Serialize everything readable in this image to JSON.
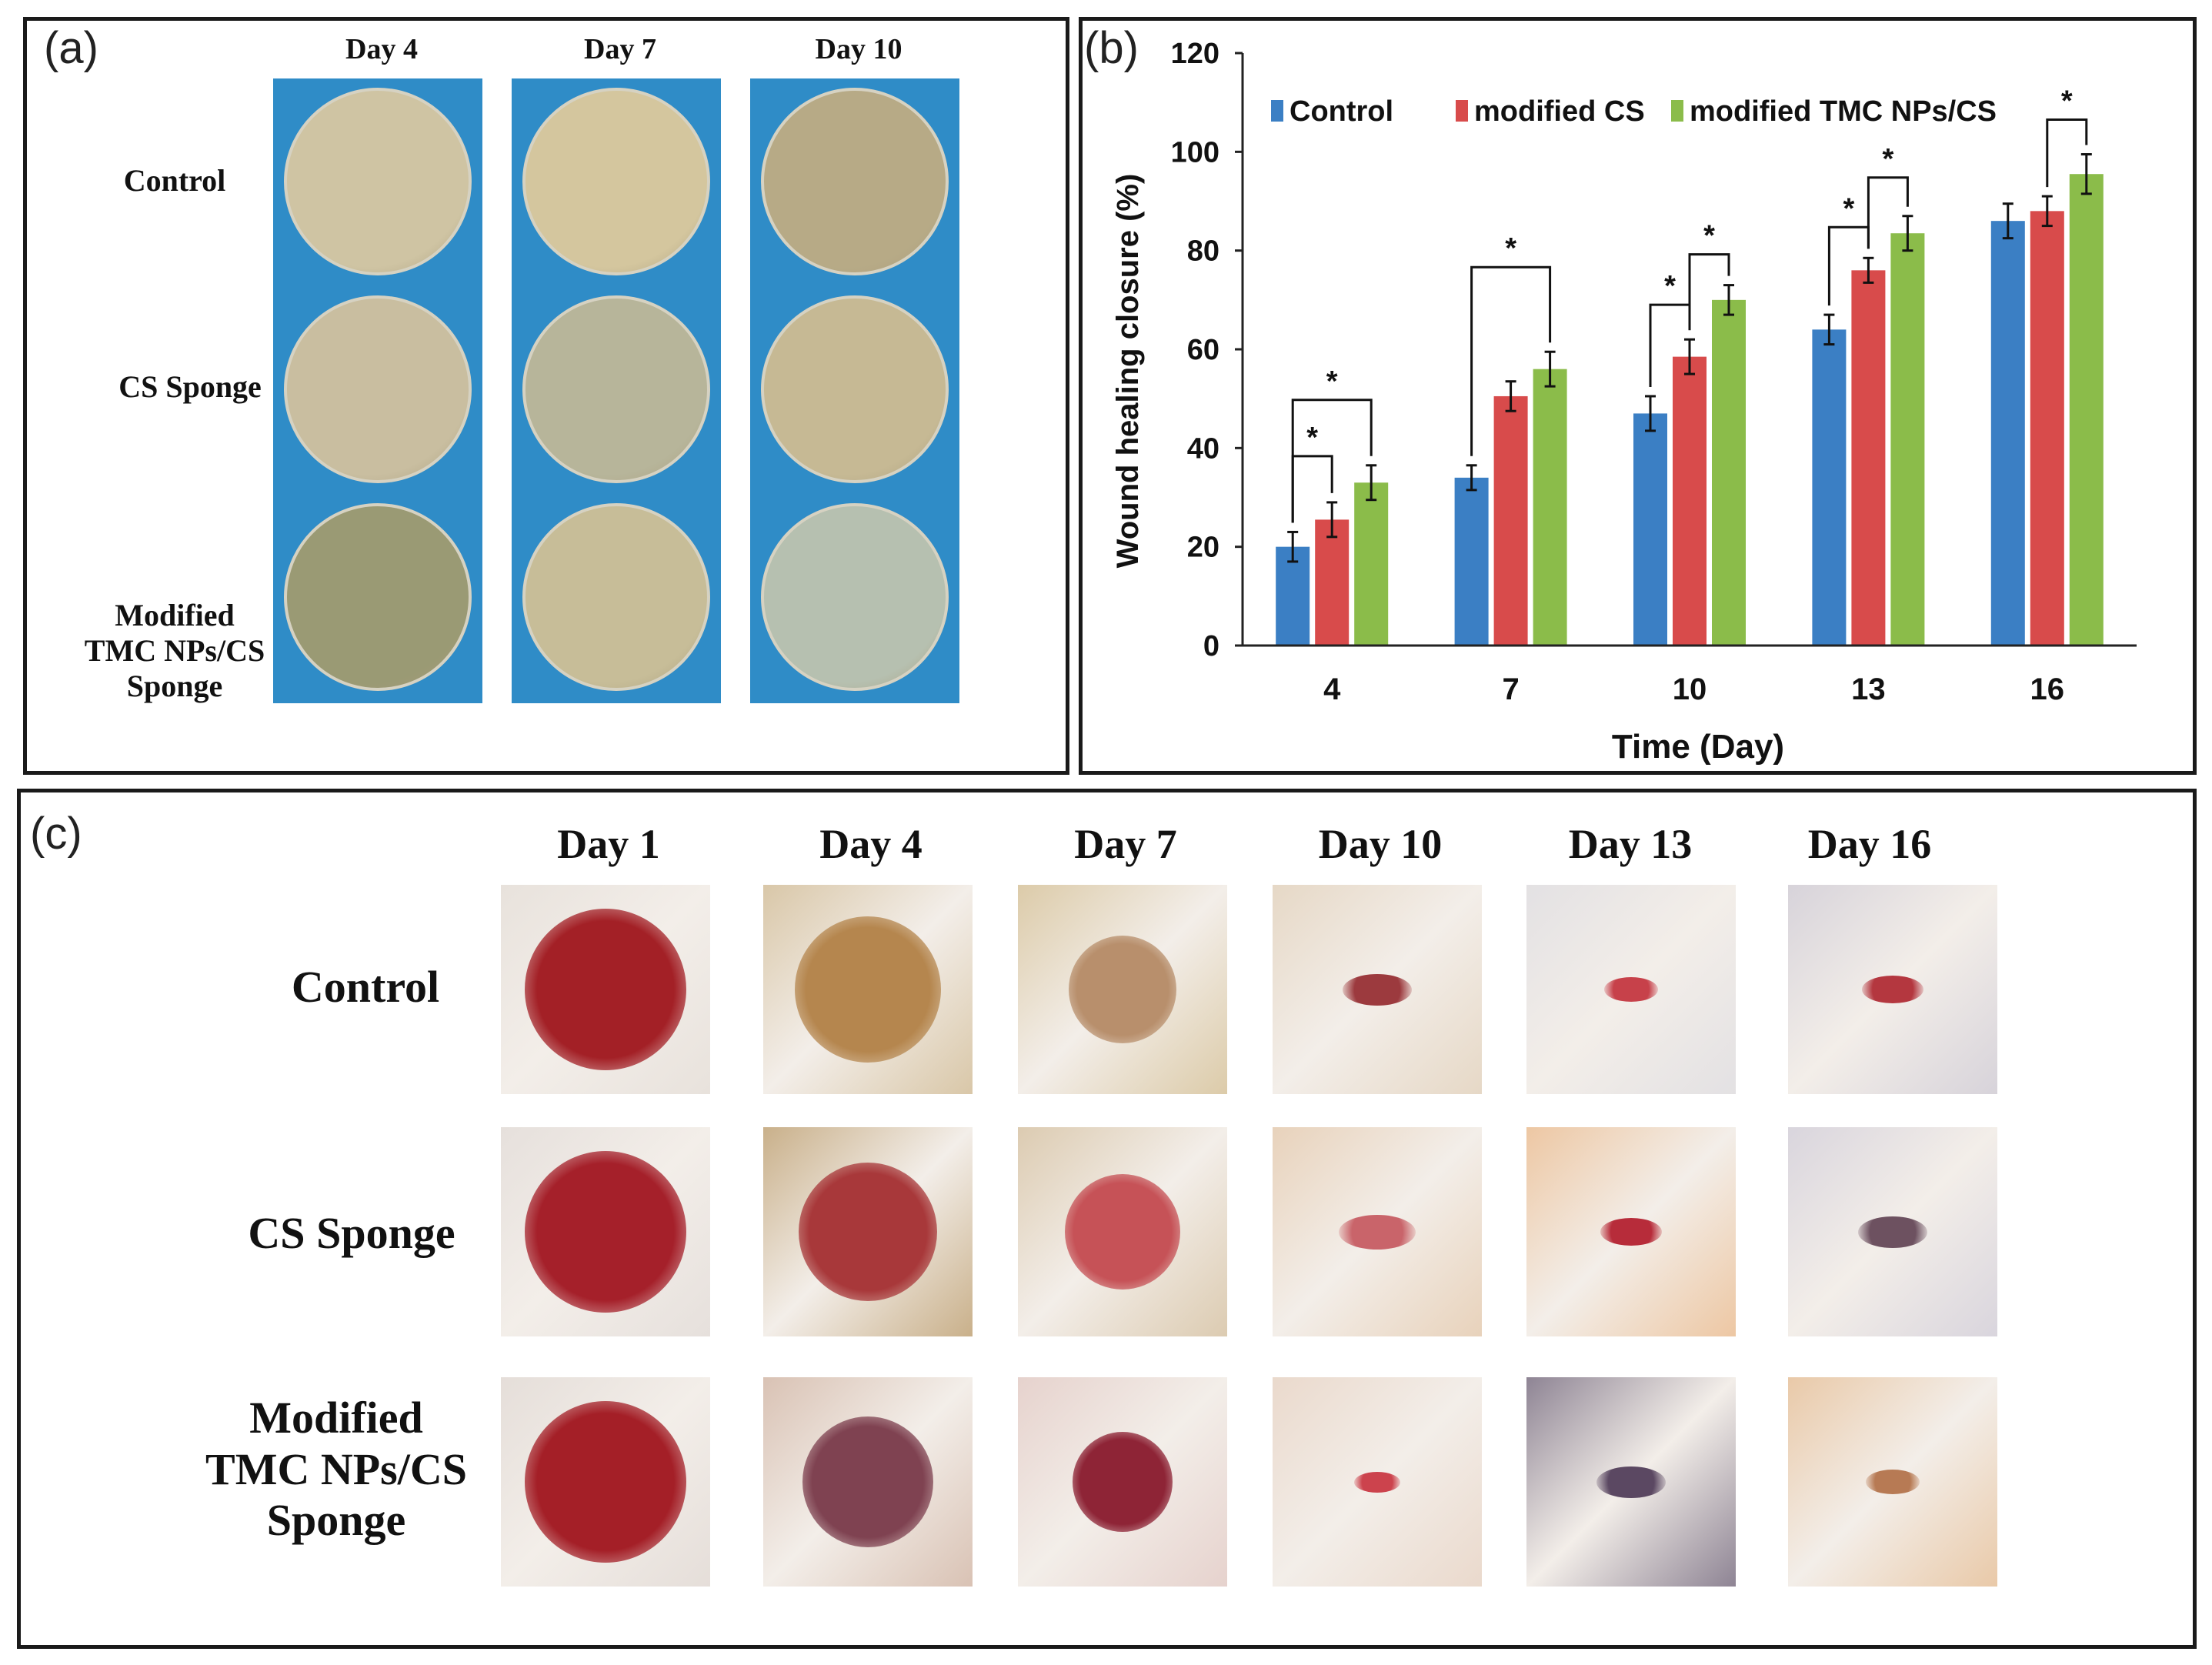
{
  "panel_a": {
    "label": "(a)",
    "columns": [
      "Day 4",
      "Day 7",
      "Day 10"
    ],
    "rows": [
      {
        "lines": [
          "Control"
        ]
      },
      {
        "lines": [
          "CS Sponge"
        ]
      },
      {
        "lines": [
          "Modified",
          "TMC NPs/CS",
          "Sponge"
        ]
      }
    ],
    "dish_colors": {
      "background": "#2f8cc7",
      "plates": [
        [
          "#cfc4a3",
          "#d4c69e",
          "#b7aa86"
        ],
        [
          "#c9bea0",
          "#b7b59a",
          "#c6b994"
        ],
        [
          "#9a9a74",
          "#c7bd98",
          "#b6c0b0"
        ]
      ]
    }
  },
  "panel_b": {
    "label": "(b)",
    "chart_data": {
      "type": "bar",
      "title": "",
      "xlabel": "Time (Day)",
      "ylabel": "Wound healing closure (%)",
      "categories": [
        "4",
        "7",
        "10",
        "13",
        "16"
      ],
      "ylim": [
        0,
        120
      ],
      "yticks": [
        0,
        20,
        40,
        60,
        80,
        100,
        120
      ],
      "legend_position": "top",
      "series": [
        {
          "name": "Control",
          "color": "#3b7fc4",
          "values": [
            20,
            34,
            47,
            64,
            86
          ],
          "errors": [
            3,
            2.5,
            3.5,
            3,
            3.5
          ]
        },
        {
          "name": "modified CS",
          "color": "#d84b4b",
          "values": [
            25.5,
            50.5,
            58.5,
            76,
            88
          ],
          "errors": [
            3.5,
            3,
            3.5,
            2.5,
            3
          ]
        },
        {
          "name": "modified TMC NPs/CS",
          "color": "#8bbc4a",
          "values": [
            33,
            56,
            70,
            83.5,
            95.5
          ],
          "errors": [
            3.5,
            3.5,
            3,
            3.5,
            4
          ]
        }
      ],
      "annotations": [
        {
          "day": "4",
          "marks": [
            "*",
            "*"
          ]
        },
        {
          "day": "7",
          "marks": [
            "*"
          ]
        },
        {
          "day": "10",
          "marks": [
            "*",
            "*"
          ]
        },
        {
          "day": "13",
          "marks": [
            "*",
            "*"
          ]
        },
        {
          "day": "16",
          "marks": [
            "*"
          ]
        }
      ]
    }
  },
  "panel_c": {
    "label": "(c)",
    "columns": [
      "Day 1",
      "Day 4",
      "Day 7",
      "Day 10",
      "Day 13",
      "Day 16"
    ],
    "rows": [
      {
        "lines": [
          "Control"
        ]
      },
      {
        "lines": [
          "CS Sponge"
        ]
      },
      {
        "lines": [
          "Modified",
          "TMC NPs/CS",
          "Sponge"
        ]
      }
    ],
    "wound_colors": {
      "fur": [
        [
          "#e8e2dc",
          "#d9c7a8",
          "#dccba9",
          "#e6d8c6",
          "#e3e1e3",
          "#d7d3da"
        ],
        [
          "#e6e0dc",
          "#c9b08a",
          "#dccbb1",
          "#e8d2bb",
          "#edc7a3",
          "#d9d5dd"
        ],
        [
          "#e5ded9",
          "#d9c2b4",
          "#e6d2cd",
          "#ead9cc",
          "#8e8494",
          "#e9c9a8"
        ]
      ],
      "lesion": [
        [
          "#a32026",
          "#b5864e",
          "#b88f6c",
          "#9c3a3e",
          "#c7414a",
          "#b4373f"
        ],
        [
          "#a5202a",
          "#a8383a",
          "#c65257",
          "#c9646a",
          "#b72c3a",
          "#6d5160"
        ],
        [
          "#a41f27",
          "#7f4251",
          "#8e2436",
          "#cc434d",
          "#5b4862",
          "#b77a54"
        ]
      ]
    }
  }
}
